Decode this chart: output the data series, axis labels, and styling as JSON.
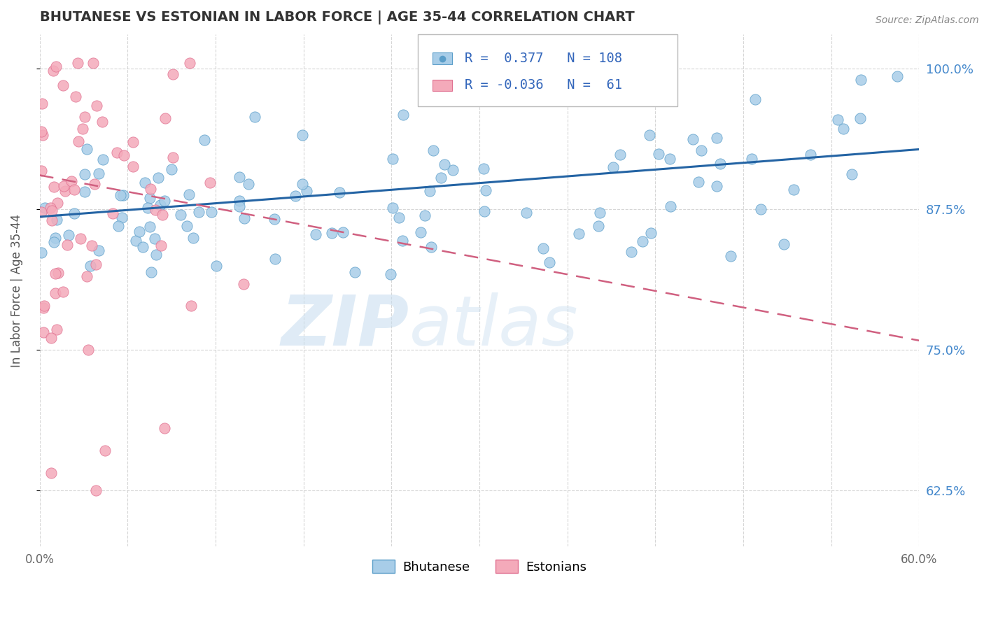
{
  "title": "BHUTANESE VS ESTONIAN IN LABOR FORCE | AGE 35-44 CORRELATION CHART",
  "source_text": "Source: ZipAtlas.com",
  "ylabel": "In Labor Force | Age 35-44",
  "xlim": [
    0.0,
    0.6
  ],
  "ylim": [
    0.575,
    1.03
  ],
  "yticks_right": [
    0.625,
    0.75,
    0.875,
    1.0
  ],
  "ytick_labels_right": [
    "62.5%",
    "75.0%",
    "87.5%",
    "100.0%"
  ],
  "blue_R": 0.377,
  "blue_N": 108,
  "pink_R": -0.036,
  "pink_N": 61,
  "blue_color": "#A8CDE8",
  "pink_color": "#F4AABA",
  "blue_edge_color": "#5B9EC9",
  "pink_edge_color": "#E07090",
  "blue_line_color": "#2464A4",
  "pink_line_color": "#D06080",
  "legend_label_blue": "Bhutanese",
  "legend_label_pink": "Estonians",
  "watermark_color": "#D8EBF5",
  "right_tick_color": "#4488CC",
  "title_color": "#333333",
  "source_color": "#888888"
}
